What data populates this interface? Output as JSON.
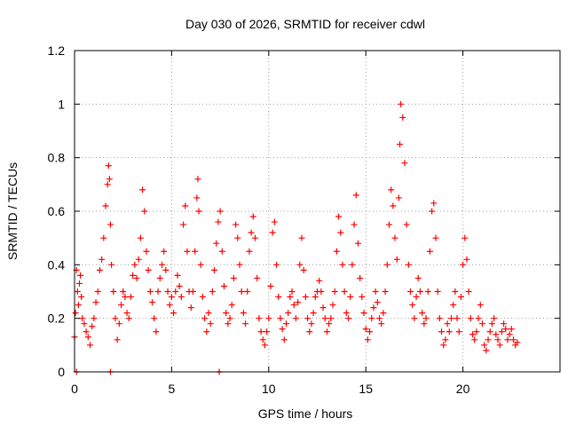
{
  "chart_data": {
    "type": "scatter",
    "title": "Day 030 of 2026, SRMTID for receiver cdwl",
    "xlabel": "GPS time / hours",
    "ylabel": "SRMTID / TECUs",
    "xlim": [
      0,
      25
    ],
    "ylim": [
      0,
      1.2
    ],
    "xticks": [
      0,
      5,
      10,
      15,
      20
    ],
    "xtick_labels": [
      "0",
      "5",
      "10",
      "15",
      "20"
    ],
    "yticks": [
      0,
      0.2,
      0.4,
      0.6,
      0.8,
      1,
      1.2
    ],
    "ytick_labels": [
      "0",
      "0.2",
      "0.4",
      "0.6",
      "0.8",
      "1",
      "1.2"
    ],
    "grid": true,
    "marker": "+",
    "marker_color": "#ff0000",
    "series": [
      {
        "name": "SRMTID",
        "x": [
          0.0,
          0.05,
          0.1,
          0.15,
          0.2,
          0.25,
          0.3,
          0.35,
          0.4,
          0.5,
          0.6,
          0.7,
          0.8,
          0.9,
          1.0,
          1.1,
          1.2,
          1.3,
          1.4,
          1.5,
          1.6,
          1.7,
          1.75,
          1.8,
          1.85,
          1.9,
          2.0,
          2.1,
          2.2,
          2.3,
          2.4,
          2.5,
          2.6,
          2.7,
          2.8,
          2.9,
          3.0,
          3.1,
          3.2,
          3.3,
          3.4,
          3.5,
          3.6,
          3.7,
          3.8,
          3.9,
          4.0,
          4.1,
          4.2,
          4.3,
          4.4,
          4.5,
          4.6,
          4.7,
          4.8,
          4.9,
          5.0,
          5.1,
          5.2,
          5.3,
          5.4,
          5.5,
          5.6,
          5.7,
          5.8,
          5.9,
          6.0,
          6.1,
          6.2,
          6.3,
          6.35,
          6.4,
          6.5,
          6.6,
          6.7,
          6.8,
          6.9,
          7.0,
          7.1,
          7.2,
          7.3,
          7.4,
          7.5,
          7.6,
          7.7,
          7.8,
          7.9,
          8.0,
          8.1,
          8.2,
          8.3,
          8.4,
          8.5,
          8.6,
          8.7,
          8.8,
          8.9,
          9.0,
          9.1,
          9.2,
          9.3,
          9.4,
          9.5,
          9.6,
          9.7,
          9.8,
          9.9,
          10.0,
          10.1,
          10.2,
          10.3,
          10.4,
          10.5,
          10.6,
          10.7,
          10.8,
          10.9,
          11.0,
          11.1,
          11.2,
          11.3,
          11.4,
          11.5,
          11.6,
          11.7,
          11.8,
          11.9,
          12.0,
          12.1,
          12.2,
          12.3,
          12.4,
          12.5,
          12.6,
          12.7,
          12.8,
          12.9,
          13.0,
          13.1,
          13.2,
          13.3,
          13.4,
          13.5,
          13.6,
          13.7,
          13.8,
          13.9,
          14.0,
          14.1,
          14.2,
          14.3,
          14.4,
          14.5,
          14.6,
          14.7,
          14.8,
          14.9,
          15.0,
          15.1,
          15.2,
          15.3,
          15.4,
          15.5,
          15.6,
          15.7,
          15.8,
          15.9,
          16.0,
          16.1,
          16.2,
          16.3,
          16.4,
          16.5,
          16.6,
          16.7,
          16.75,
          16.8,
          16.9,
          17.0,
          17.1,
          17.2,
          17.3,
          17.4,
          17.5,
          17.6,
          17.7,
          17.8,
          17.9,
          18.0,
          18.1,
          18.2,
          18.3,
          18.4,
          18.5,
          18.6,
          18.7,
          18.8,
          18.9,
          19.0,
          19.1,
          19.2,
          19.3,
          19.4,
          19.5,
          19.6,
          19.7,
          19.8,
          19.9,
          20.0,
          20.1,
          20.2,
          20.3,
          20.4,
          20.5,
          20.6,
          20.7,
          20.8,
          20.9,
          21.0,
          21.1,
          21.2,
          21.3,
          21.4,
          21.5,
          21.6,
          21.7,
          21.8,
          21.9,
          22.0,
          22.1,
          22.2,
          22.3,
          22.4,
          22.5,
          22.6,
          22.7,
          22.8,
          0.1,
          1.85,
          7.45
        ],
        "y": [
          0.13,
          0.22,
          0.38,
          0.3,
          0.25,
          0.33,
          0.36,
          0.28,
          0.2,
          0.18,
          0.15,
          0.13,
          0.1,
          0.17,
          0.2,
          0.26,
          0.3,
          0.38,
          0.42,
          0.5,
          0.62,
          0.7,
          0.77,
          0.72,
          0.55,
          0.4,
          0.3,
          0.2,
          0.12,
          0.18,
          0.25,
          0.3,
          0.28,
          0.22,
          0.2,
          0.28,
          0.36,
          0.4,
          0.35,
          0.42,
          0.5,
          0.68,
          0.6,
          0.45,
          0.38,
          0.3,
          0.26,
          0.2,
          0.15,
          0.3,
          0.35,
          0.4,
          0.45,
          0.38,
          0.3,
          0.25,
          0.28,
          0.22,
          0.3,
          0.36,
          0.32,
          0.28,
          0.55,
          0.62,
          0.45,
          0.3,
          0.24,
          0.3,
          0.45,
          0.65,
          0.72,
          0.6,
          0.4,
          0.28,
          0.2,
          0.15,
          0.22,
          0.18,
          0.3,
          0.38,
          0.48,
          0.56,
          0.6,
          0.45,
          0.32,
          0.22,
          0.18,
          0.2,
          0.25,
          0.35,
          0.55,
          0.5,
          0.4,
          0.3,
          0.22,
          0.18,
          0.3,
          0.45,
          0.52,
          0.58,
          0.5,
          0.35,
          0.2,
          0.15,
          0.12,
          0.1,
          0.15,
          0.2,
          0.32,
          0.52,
          0.56,
          0.4,
          0.28,
          0.2,
          0.16,
          0.12,
          0.18,
          0.22,
          0.28,
          0.3,
          0.25,
          0.2,
          0.26,
          0.4,
          0.5,
          0.38,
          0.28,
          0.2,
          0.15,
          0.18,
          0.22,
          0.28,
          0.3,
          0.34,
          0.3,
          0.24,
          0.2,
          0.15,
          0.18,
          0.2,
          0.25,
          0.3,
          0.45,
          0.58,
          0.52,
          0.4,
          0.3,
          0.22,
          0.2,
          0.28,
          0.4,
          0.55,
          0.66,
          0.48,
          0.35,
          0.28,
          0.22,
          0.16,
          0.12,
          0.15,
          0.2,
          0.24,
          0.3,
          0.26,
          0.2,
          0.18,
          0.22,
          0.3,
          0.4,
          0.55,
          0.68,
          0.62,
          0.5,
          0.42,
          0.65,
          0.85,
          1.0,
          0.95,
          0.78,
          0.55,
          0.4,
          0.3,
          0.25,
          0.2,
          0.28,
          0.35,
          0.3,
          0.22,
          0.18,
          0.2,
          0.3,
          0.45,
          0.6,
          0.63,
          0.5,
          0.3,
          0.2,
          0.15,
          0.1,
          0.12,
          0.18,
          0.15,
          0.2,
          0.25,
          0.3,
          0.2,
          0.15,
          0.28,
          0.4,
          0.5,
          0.42,
          0.3,
          0.2,
          0.14,
          0.12,
          0.15,
          0.2,
          0.25,
          0.18,
          0.1,
          0.08,
          0.12,
          0.15,
          0.18,
          0.2,
          0.14,
          0.12,
          0.1,
          0.15,
          0.18,
          0.16,
          0.12,
          0.14,
          0.16,
          0.12,
          0.1,
          0.11,
          0.0,
          0.0,
          0.0
        ]
      }
    ]
  }
}
